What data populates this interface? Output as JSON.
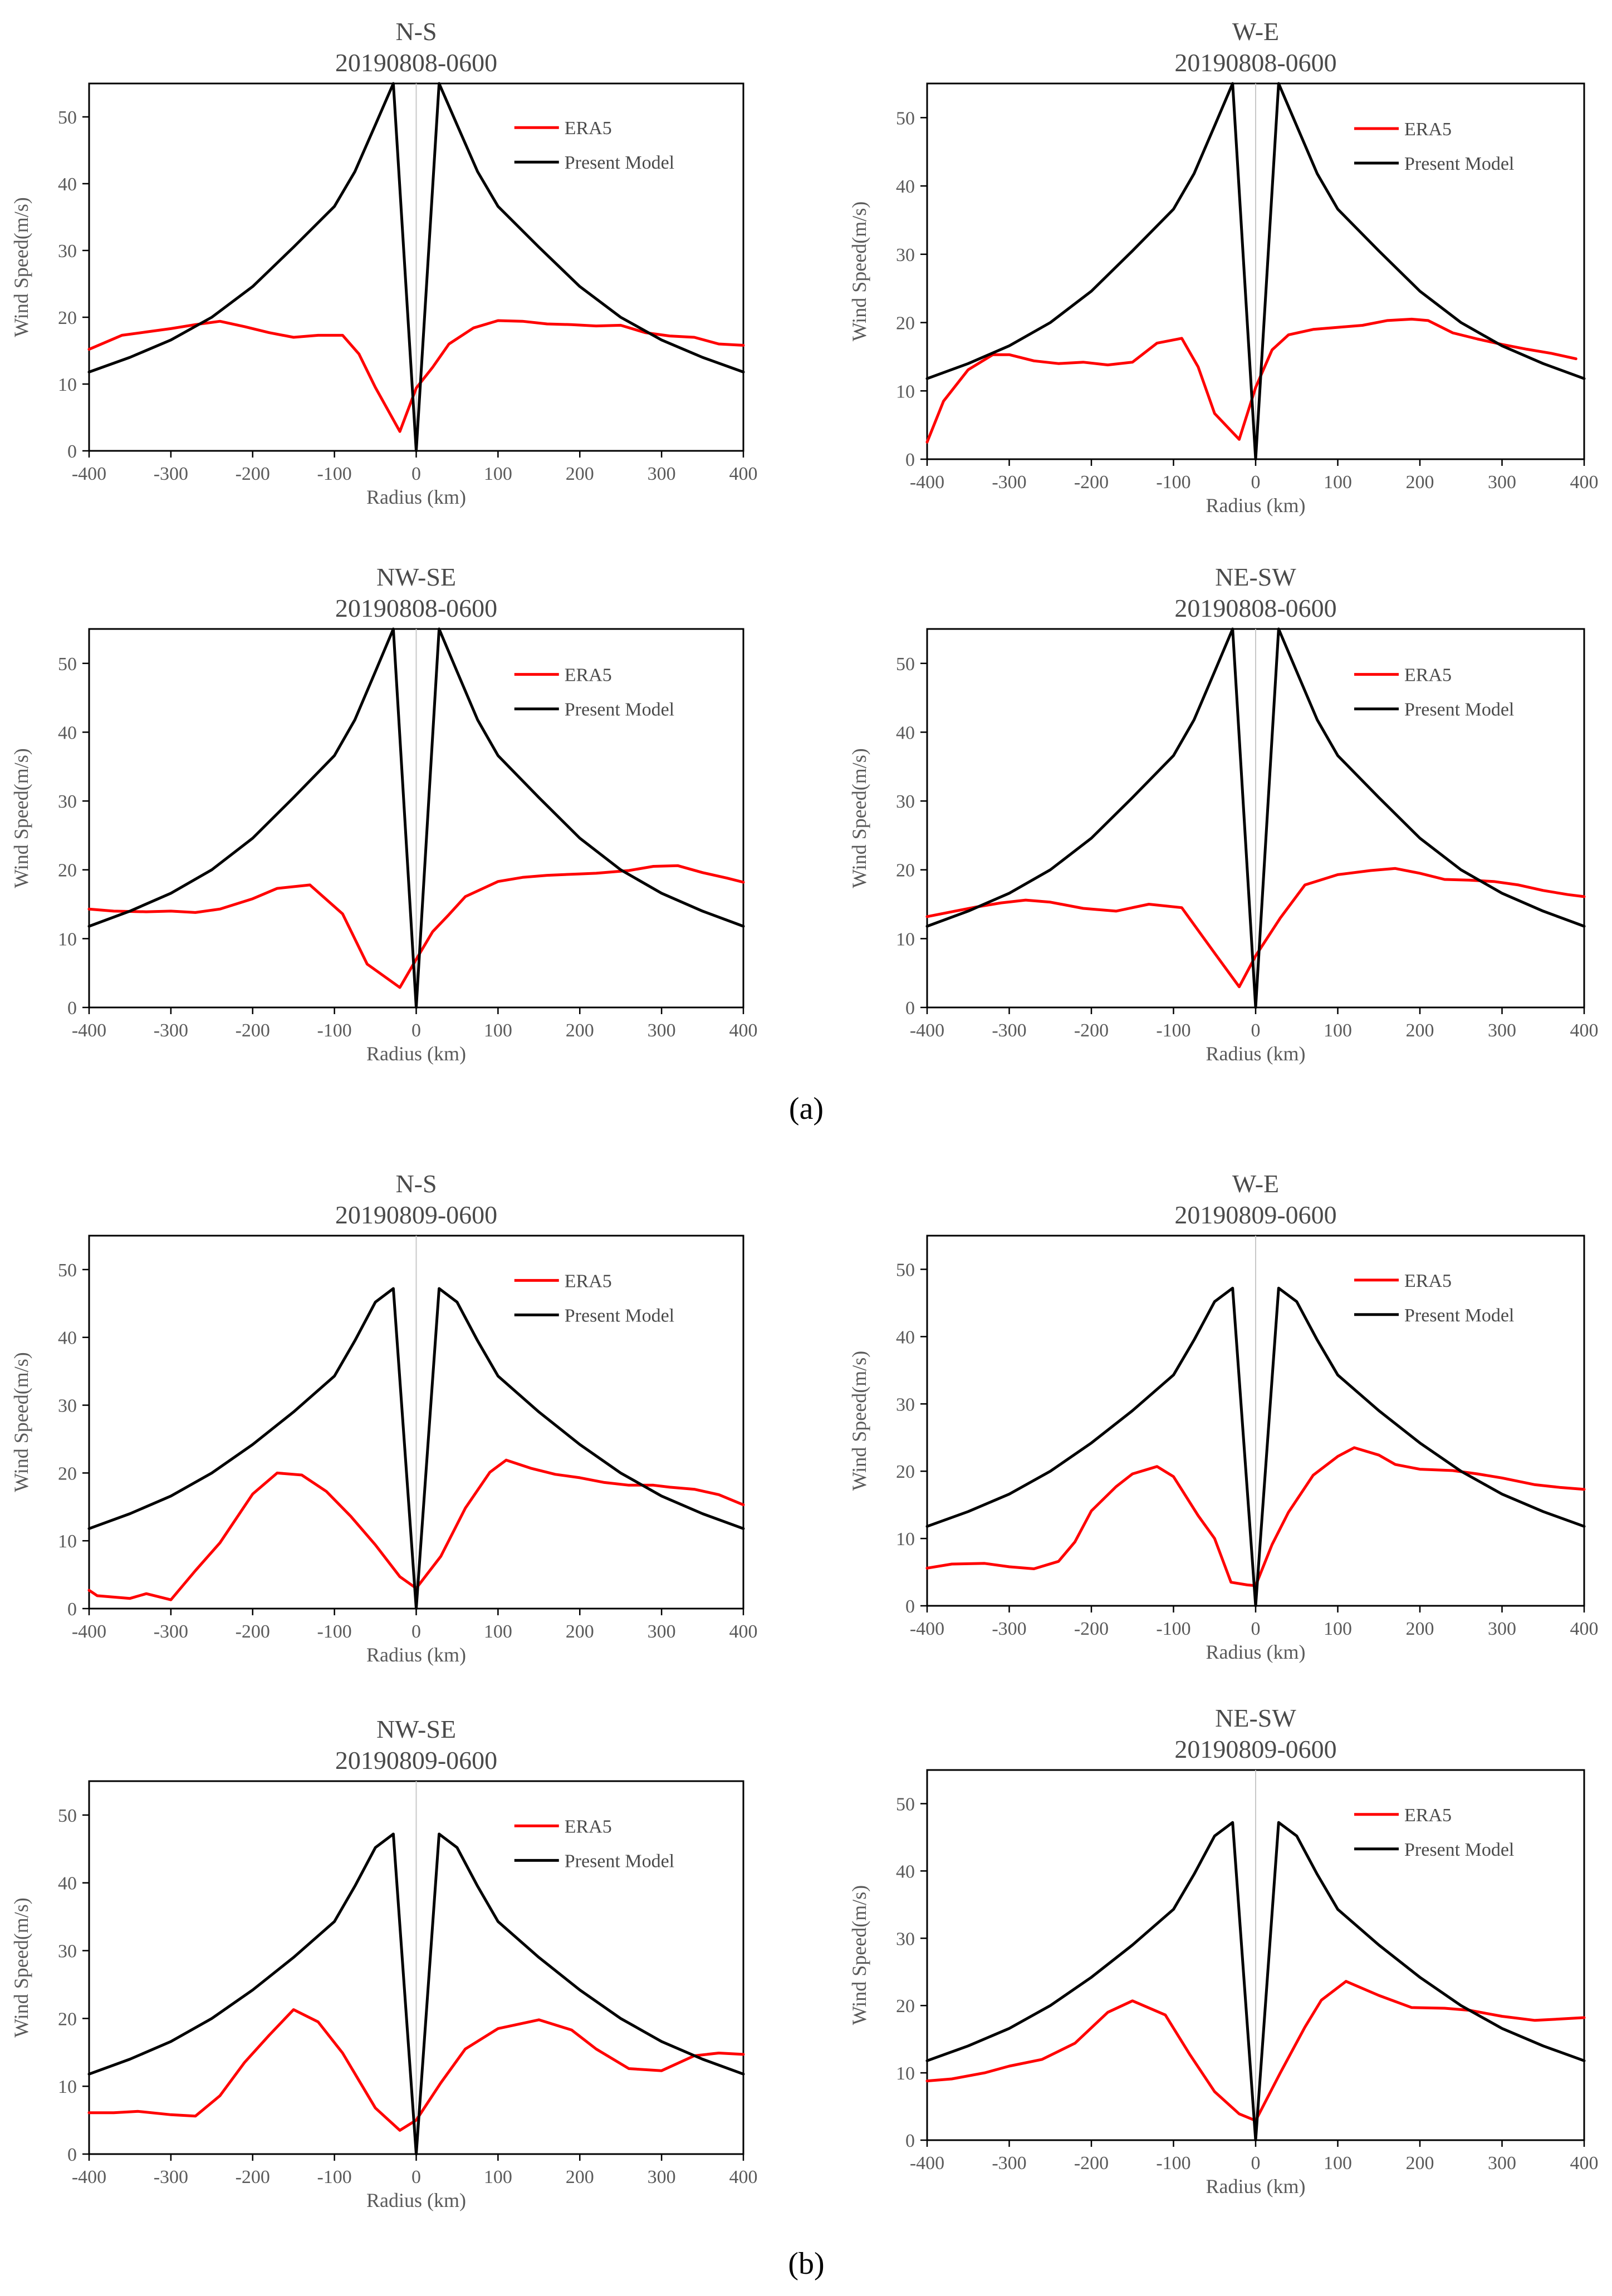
{
  "panel_labels": [
    "(a)",
    "(b)"
  ],
  "series_colors": {
    "ERA5": "#ff0000",
    "Present Model": "#000000"
  },
  "chart_data": [
    {
      "type": "line",
      "title": "N-S",
      "subtitle": "20190808-0600",
      "xlabel": "Radius (km)",
      "ylabel": "Wind Speed(m/s)",
      "xlim": [
        -400,
        400
      ],
      "ylim": [
        0,
        55
      ],
      "xticks": [
        -400,
        -300,
        -200,
        -100,
        0,
        100,
        200,
        300,
        400
      ],
      "yticks": [
        0,
        10,
        20,
        30,
        40,
        50
      ],
      "legend": "top-right",
      "series": [
        {
          "name": "ERA5",
          "x": [
            -400,
            -360,
            -330,
            -300,
            -270,
            -240,
            -210,
            -180,
            -150,
            -120,
            -90,
            -70,
            -50,
            -20,
            0,
            20,
            40,
            70,
            100,
            130,
            160,
            190,
            220,
            250,
            280,
            310,
            340,
            370,
            400
          ],
          "y": [
            15.2,
            17.3,
            17.8,
            18.3,
            18.9,
            19.4,
            18.6,
            17.7,
            17.0,
            17.3,
            17.3,
            14.5,
            9.5,
            2.9,
            9.4,
            12.5,
            16.0,
            18.4,
            19.5,
            19.4,
            19.0,
            18.9,
            18.7,
            18.8,
            17.7,
            17.2,
            17.0,
            16.0,
            15.8
          ]
        },
        {
          "name": "Present Model",
          "x": [
            -400,
            -350,
            -300,
            -250,
            -200,
            -150,
            -100,
            -75,
            -50,
            -28,
            0,
            28,
            50,
            75,
            100,
            150,
            200,
            250,
            300,
            350,
            400
          ],
          "y": [
            11.8,
            14.0,
            16.6,
            20.0,
            24.6,
            30.5,
            36.6,
            41.8,
            48.8,
            55,
            0,
            55,
            48.8,
            41.8,
            36.6,
            30.5,
            24.6,
            20.0,
            16.6,
            14.0,
            11.8
          ]
        }
      ]
    },
    {
      "type": "line",
      "title": "W-E",
      "subtitle": "20190808-0600",
      "xlabel": "Radius (km)",
      "ylabel": "Wind Speed(m/s)",
      "xlim": [
        -400,
        400
      ],
      "ylim": [
        0,
        55
      ],
      "xticks": [
        -400,
        -300,
        -200,
        -100,
        0,
        100,
        200,
        300,
        400
      ],
      "yticks": [
        0,
        10,
        20,
        30,
        40,
        50
      ],
      "legend": "top-right",
      "series": [
        {
          "name": "ERA5",
          "x": [
            -400,
            -380,
            -350,
            -320,
            -300,
            -270,
            -240,
            -210,
            -180,
            -150,
            -120,
            -90,
            -70,
            -50,
            -20,
            0,
            20,
            40,
            70,
            100,
            130,
            160,
            190,
            210,
            240,
            270,
            300,
            330,
            360,
            390
          ],
          "y": [
            2.5,
            8.5,
            13.1,
            15.3,
            15.3,
            14.4,
            14.0,
            14.2,
            13.8,
            14.2,
            17.0,
            17.7,
            13.5,
            6.7,
            2.9,
            10.5,
            16.0,
            18.2,
            19.0,
            19.3,
            19.6,
            20.3,
            20.5,
            20.3,
            18.5,
            17.6,
            16.8,
            16.1,
            15.5,
            14.7
          ]
        },
        {
          "name": "Present Model",
          "x": [
            -400,
            -350,
            -300,
            -250,
            -200,
            -150,
            -100,
            -75,
            -50,
            -28,
            0,
            28,
            50,
            75,
            100,
            150,
            200,
            250,
            300,
            350,
            400
          ],
          "y": [
            11.8,
            14.0,
            16.6,
            20.0,
            24.6,
            30.5,
            36.6,
            41.8,
            48.8,
            55,
            0,
            55,
            48.8,
            41.8,
            36.6,
            30.5,
            24.6,
            20.0,
            16.6,
            14.0,
            11.8
          ]
        }
      ]
    },
    {
      "type": "line",
      "title": "NW-SE",
      "subtitle": "20190808-0600",
      "xlabel": "Radius (km)",
      "ylabel": "Wind Speed(m/s)",
      "xlim": [
        -400,
        400
      ],
      "ylim": [
        0,
        55
      ],
      "xticks": [
        -400,
        -300,
        -200,
        -100,
        0,
        100,
        200,
        300,
        400
      ],
      "yticks": [
        0,
        10,
        20,
        30,
        40,
        50
      ],
      "legend": "top-right",
      "series": [
        {
          "name": "ERA5",
          "x": [
            -400,
            -370,
            -330,
            -300,
            -270,
            -240,
            -200,
            -170,
            -130,
            -90,
            -60,
            -20,
            0,
            20,
            40,
            60,
            100,
            130,
            160,
            200,
            220,
            260,
            290,
            320,
            350,
            380,
            400
          ],
          "y": [
            14.3,
            14.0,
            13.9,
            14.0,
            13.8,
            14.3,
            15.8,
            17.3,
            17.8,
            13.6,
            6.3,
            2.9,
            7.0,
            11.0,
            13.5,
            16.1,
            18.3,
            18.9,
            19.2,
            19.4,
            19.5,
            19.9,
            20.5,
            20.6,
            19.6,
            18.8,
            18.2
          ]
        },
        {
          "name": "Present Model",
          "x": [
            -400,
            -350,
            -300,
            -250,
            -200,
            -150,
            -100,
            -75,
            -50,
            -28,
            0,
            28,
            50,
            75,
            100,
            150,
            200,
            250,
            300,
            350,
            400
          ],
          "y": [
            11.8,
            14.0,
            16.6,
            20.0,
            24.6,
            30.5,
            36.6,
            41.8,
            48.8,
            55,
            0,
            55,
            48.8,
            41.8,
            36.6,
            30.5,
            24.6,
            20.0,
            16.6,
            14.0,
            11.8
          ]
        }
      ]
    },
    {
      "type": "line",
      "title": "NE-SW",
      "subtitle": "20190808-0600",
      "xlabel": "Radius (km)",
      "ylabel": "Wind Speed(m/s)",
      "xlim": [
        -400,
        400
      ],
      "ylim": [
        0,
        55
      ],
      "xticks": [
        -400,
        -300,
        -200,
        -100,
        0,
        100,
        200,
        300,
        400
      ],
      "yticks": [
        0,
        10,
        20,
        30,
        40,
        50
      ],
      "legend": "top-right",
      "series": [
        {
          "name": "ERA5",
          "x": [
            -400,
            -370,
            -340,
            -310,
            -280,
            -250,
            -210,
            -170,
            -130,
            -90,
            -50,
            -20,
            0,
            30,
            60,
            100,
            140,
            170,
            200,
            230,
            260,
            290,
            320,
            350,
            380,
            400
          ],
          "y": [
            13.2,
            13.9,
            14.6,
            15.2,
            15.6,
            15.3,
            14.4,
            14.0,
            15.0,
            14.5,
            7.9,
            3.0,
            7.5,
            13.0,
            17.8,
            19.3,
            19.9,
            20.2,
            19.5,
            18.6,
            18.5,
            18.3,
            17.8,
            17.0,
            16.4,
            16.1
          ]
        },
        {
          "name": "Present Model",
          "x": [
            -400,
            -350,
            -300,
            -250,
            -200,
            -150,
            -100,
            -75,
            -50,
            -28,
            0,
            28,
            50,
            75,
            100,
            150,
            200,
            250,
            300,
            350,
            400
          ],
          "y": [
            11.8,
            14.0,
            16.6,
            20.0,
            24.6,
            30.5,
            36.6,
            41.8,
            48.8,
            55,
            0,
            55,
            48.8,
            41.8,
            36.6,
            30.5,
            24.6,
            20.0,
            16.6,
            14.0,
            11.8
          ]
        }
      ]
    },
    {
      "type": "line",
      "title": "N-S",
      "subtitle": "20190809-0600",
      "xlabel": "Radius (km)",
      "ylabel": "Wind Speed(m/s)",
      "xlim": [
        -400,
        400
      ],
      "ylim": [
        0,
        55
      ],
      "xticks": [
        -400,
        -300,
        -200,
        -100,
        0,
        100,
        200,
        300,
        400
      ],
      "yticks": [
        0,
        10,
        20,
        30,
        40,
        50
      ],
      "legend": "top-right",
      "series": [
        {
          "name": "ERA5",
          "x": [
            -400,
            -390,
            -350,
            -330,
            -300,
            -270,
            -240,
            -200,
            -170,
            -140,
            -110,
            -80,
            -50,
            -20,
            0,
            30,
            60,
            90,
            110,
            140,
            170,
            200,
            230,
            260,
            290,
            310,
            340,
            370,
            400
          ],
          "y": [
            2.7,
            1.9,
            1.5,
            2.2,
            1.3,
            5.6,
            9.7,
            16.9,
            20.0,
            19.7,
            17.3,
            13.6,
            9.4,
            4.7,
            3.0,
            7.7,
            14.8,
            20.1,
            21.9,
            20.7,
            19.8,
            19.3,
            18.6,
            18.2,
            18.2,
            17.9,
            17.6,
            16.8,
            15.3
          ]
        },
        {
          "name": "Present Model",
          "x": [
            -400,
            -350,
            -300,
            -250,
            -200,
            -150,
            -100,
            -75,
            -50,
            -28,
            0,
            28,
            50,
            75,
            100,
            150,
            200,
            250,
            300,
            350,
            400
          ],
          "y": [
            11.8,
            14.0,
            16.6,
            20.0,
            24.2,
            29.0,
            34.3,
            39.5,
            45.2,
            47.2,
            0,
            47.2,
            45.2,
            39.5,
            34.3,
            29.0,
            24.2,
            20.0,
            16.6,
            14.0,
            11.8
          ]
        }
      ]
    },
    {
      "type": "line",
      "title": "W-E",
      "subtitle": "20190809-0600",
      "xlabel": "Radius (km)",
      "ylabel": "Wind Speed(m/s)",
      "xlim": [
        -400,
        400
      ],
      "ylim": [
        0,
        55
      ],
      "xticks": [
        -400,
        -300,
        -200,
        -100,
        0,
        100,
        200,
        300,
        400
      ],
      "yticks": [
        0,
        10,
        20,
        30,
        40,
        50
      ],
      "legend": "top-right",
      "series": [
        {
          "name": "ERA5",
          "x": [
            -400,
            -370,
            -330,
            -300,
            -270,
            -240,
            -220,
            -200,
            -170,
            -150,
            -120,
            -100,
            -70,
            -50,
            -30,
            -10,
            0,
            20,
            40,
            70,
            100,
            120,
            150,
            170,
            200,
            240,
            270,
            300,
            340,
            370,
            400
          ],
          "y": [
            5.6,
            6.2,
            6.3,
            5.8,
            5.5,
            6.6,
            9.5,
            14.1,
            17.7,
            19.6,
            20.7,
            19.2,
            13.4,
            10.0,
            3.5,
            3.1,
            3.0,
            9.1,
            13.9,
            19.4,
            22.2,
            23.5,
            22.4,
            21.0,
            20.3,
            20.1,
            19.6,
            19.0,
            18.0,
            17.6,
            17.3
          ]
        },
        {
          "name": "Present Model",
          "x": [
            -400,
            -350,
            -300,
            -250,
            -200,
            -150,
            -100,
            -75,
            -50,
            -28,
            0,
            28,
            50,
            75,
            100,
            150,
            200,
            250,
            300,
            350,
            400
          ],
          "y": [
            11.8,
            14.0,
            16.6,
            20.0,
            24.2,
            29.0,
            34.3,
            39.5,
            45.2,
            47.2,
            0,
            47.2,
            45.2,
            39.5,
            34.3,
            29.0,
            24.2,
            20.0,
            16.6,
            14.0,
            11.8
          ]
        }
      ]
    },
    {
      "type": "line",
      "title": "NW-SE",
      "subtitle": "20190809-0600",
      "xlabel": "Radius (km)",
      "ylabel": "Wind Speed(m/s)",
      "xlim": [
        -400,
        400
      ],
      "ylim": [
        0,
        55
      ],
      "xticks": [
        -400,
        -300,
        -200,
        -100,
        0,
        100,
        200,
        300,
        400
      ],
      "yticks": [
        0,
        10,
        20,
        30,
        40,
        50
      ],
      "legend": "top-right",
      "series": [
        {
          "name": "ERA5",
          "x": [
            -400,
            -370,
            -340,
            -300,
            -270,
            -240,
            -210,
            -180,
            -150,
            -120,
            -90,
            -50,
            -20,
            0,
            30,
            60,
            100,
            150,
            190,
            220,
            260,
            300,
            340,
            370,
            400
          ],
          "y": [
            6.1,
            6.1,
            6.3,
            5.8,
            5.6,
            8.6,
            13.5,
            17.5,
            21.3,
            19.5,
            14.9,
            6.8,
            3.5,
            5.0,
            10.5,
            15.5,
            18.5,
            19.8,
            18.3,
            15.5,
            12.6,
            12.3,
            14.5,
            14.9,
            14.7
          ]
        },
        {
          "name": "Present Model",
          "x": [
            -400,
            -350,
            -300,
            -250,
            -200,
            -150,
            -100,
            -75,
            -50,
            -28,
            0,
            28,
            50,
            75,
            100,
            150,
            200,
            250,
            300,
            350,
            400
          ],
          "y": [
            11.8,
            14.0,
            16.6,
            20.0,
            24.2,
            29.0,
            34.3,
            39.5,
            45.2,
            47.2,
            0,
            47.2,
            45.2,
            39.5,
            34.3,
            29.0,
            24.2,
            20.0,
            16.6,
            14.0,
            11.8
          ]
        }
      ]
    },
    {
      "type": "line",
      "title": "NE-SW",
      "subtitle": "20190809-0600",
      "xlabel": "Radius (km)",
      "ylabel": "Wind Speed(m/s)",
      "xlim": [
        -400,
        400
      ],
      "ylim": [
        0,
        55
      ],
      "xticks": [
        -400,
        -300,
        -200,
        -100,
        0,
        100,
        200,
        300,
        400
      ],
      "yticks": [
        0,
        10,
        20,
        30,
        40,
        50
      ],
      "legend": "top-right",
      "series": [
        {
          "name": "ERA5",
          "x": [
            -400,
            -370,
            -330,
            -300,
            -260,
            -220,
            -180,
            -150,
            -110,
            -80,
            -50,
            -20,
            0,
            30,
            60,
            80,
            110,
            150,
            190,
            230,
            260,
            300,
            340,
            370,
            400
          ],
          "y": [
            8.8,
            9.1,
            10.0,
            11.0,
            12.0,
            14.4,
            19.0,
            20.7,
            18.6,
            12.7,
            7.2,
            3.9,
            2.9,
            10.0,
            16.8,
            20.8,
            23.6,
            21.5,
            19.7,
            19.6,
            19.3,
            18.4,
            17.8,
            18.0,
            18.2
          ]
        },
        {
          "name": "Present Model",
          "x": [
            -400,
            -350,
            -300,
            -250,
            -200,
            -150,
            -100,
            -75,
            -50,
            -28,
            0,
            28,
            50,
            75,
            100,
            150,
            200,
            250,
            300,
            350,
            400
          ],
          "y": [
            11.8,
            14.0,
            16.6,
            20.0,
            24.2,
            29.0,
            34.3,
            39.5,
            45.2,
            47.2,
            0,
            47.2,
            45.2,
            39.5,
            34.3,
            29.0,
            24.2,
            20.0,
            16.6,
            14.0,
            11.8
          ]
        }
      ]
    }
  ]
}
